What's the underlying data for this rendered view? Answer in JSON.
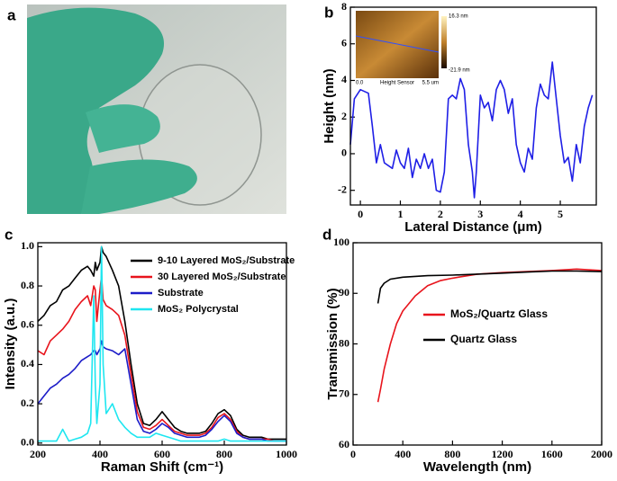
{
  "photo": {
    "label": "a"
  },
  "chart_data": [
    {
      "type": "line",
      "label": "b",
      "xlabel": "Lateral Distance (μm)",
      "ylabel": "Height (nm)",
      "xlim": [
        -0.25,
        5.9
      ],
      "ylim": [
        -2.8,
        8
      ],
      "xticks": [
        0,
        1,
        2,
        3,
        4,
        5
      ],
      "yticks": [
        -2,
        0,
        2,
        4,
        6,
        8
      ],
      "inset": {
        "scale_max": "16.3 nm",
        "scale_min": "-21.9 nm",
        "x_start": "0.0",
        "caption": "Height Sensor",
        "x_end": "5.5 um"
      },
      "series": [
        {
          "color": "#1f1fe6",
          "x": [
            -0.25,
            -0.15,
            0,
            0.2,
            0.3,
            0.4,
            0.5,
            0.6,
            0.8,
            0.9,
            1.0,
            1.1,
            1.2,
            1.3,
            1.4,
            1.5,
            1.6,
            1.7,
            1.8,
            1.9,
            2.0,
            2.1,
            2.2,
            2.3,
            2.4,
            2.5,
            2.6,
            2.7,
            2.8,
            2.85,
            2.9,
            3.0,
            3.1,
            3.2,
            3.3,
            3.4,
            3.5,
            3.6,
            3.7,
            3.8,
            3.9,
            4.0,
            4.1,
            4.2,
            4.3,
            4.4,
            4.5,
            4.6,
            4.7,
            4.8,
            4.9,
            5.0,
            5.1,
            5.2,
            5.3,
            5.4,
            5.5,
            5.6,
            5.7,
            5.8
          ],
          "values": [
            0.5,
            3.0,
            3.5,
            3.3,
            1.5,
            -0.5,
            0.5,
            -0.5,
            -0.8,
            0.2,
            -0.5,
            -0.8,
            0.3,
            -1.3,
            -0.3,
            -0.8,
            0,
            -0.8,
            -0.3,
            -2.0,
            -2.1,
            -1.0,
            3.0,
            3.2,
            3.0,
            4.1,
            3.5,
            0.5,
            -1.0,
            -2.4,
            -1.0,
            3.2,
            2.5,
            2.8,
            1.8,
            3.5,
            4.0,
            3.5,
            2.2,
            3.0,
            0.5,
            -0.5,
            -1.0,
            0.3,
            -0.3,
            2.5,
            3.8,
            3.2,
            3.0,
            5.0,
            3.0,
            1.0,
            -0.5,
            -0.2,
            -1.5,
            0.5,
            -0.5,
            1.5,
            2.5,
            3.2
          ]
        }
      ]
    },
    {
      "type": "line",
      "label": "c",
      "xlabel": "Raman Shift (cm⁻¹)",
      "ylabel": "Intensity (a.u.)",
      "xlim": [
        200,
        1000
      ],
      "ylim": [
        -0.01,
        1.02
      ],
      "xticks": [
        200,
        400,
        600,
        800,
        1000
      ],
      "yticks": [
        {
          "value": 0,
          "label": "0.0"
        },
        0.2,
        0.4,
        0.6,
        0.8,
        {
          "value": 1,
          "label": "1.0"
        }
      ],
      "legend": "upper right",
      "x": [
        200,
        220,
        240,
        260,
        280,
        300,
        320,
        340,
        360,
        370,
        380,
        385,
        390,
        400,
        405,
        410,
        420,
        440,
        460,
        480,
        500,
        520,
        540,
        560,
        580,
        600,
        620,
        640,
        660,
        680,
        700,
        720,
        740,
        760,
        780,
        800,
        820,
        840,
        860,
        880,
        900,
        920,
        940,
        960,
        980,
        1000
      ],
      "series": [
        {
          "name": "9-10 Layered MoS₂/Substrate",
          "color": "#000000",
          "values": [
            0.62,
            0.65,
            0.7,
            0.72,
            0.78,
            0.8,
            0.84,
            0.88,
            0.9,
            0.88,
            0.85,
            0.92,
            0.88,
            0.92,
            1.0,
            0.97,
            0.95,
            0.88,
            0.8,
            0.62,
            0.4,
            0.2,
            0.1,
            0.09,
            0.12,
            0.16,
            0.12,
            0.08,
            0.06,
            0.05,
            0.05,
            0.05,
            0.06,
            0.1,
            0.15,
            0.17,
            0.14,
            0.07,
            0.04,
            0.03,
            0.03,
            0.03,
            0.02,
            0.02,
            0.02,
            0.02
          ]
        },
        {
          "name": "30 Layered MoS₂/Substrate",
          "color": "#e8141c",
          "values": [
            0.47,
            0.45,
            0.52,
            0.55,
            0.58,
            0.62,
            0.68,
            0.72,
            0.75,
            0.7,
            0.8,
            0.78,
            0.62,
            0.78,
            0.85,
            0.73,
            0.7,
            0.68,
            0.65,
            0.55,
            0.35,
            0.16,
            0.08,
            0.07,
            0.09,
            0.12,
            0.09,
            0.06,
            0.05,
            0.04,
            0.04,
            0.04,
            0.05,
            0.08,
            0.13,
            0.15,
            0.12,
            0.06,
            0.03,
            0.02,
            0.02,
            0.02,
            0.02,
            0.01,
            0.01,
            0.01
          ]
        },
        {
          "name": "Substrate",
          "color": "#1c1cc8",
          "values": [
            0.2,
            0.24,
            0.28,
            0.3,
            0.33,
            0.35,
            0.38,
            0.42,
            0.44,
            0.45,
            0.47,
            0.47,
            0.45,
            0.48,
            0.52,
            0.49,
            0.48,
            0.47,
            0.45,
            0.48,
            0.3,
            0.12,
            0.06,
            0.05,
            0.07,
            0.1,
            0.08,
            0.05,
            0.04,
            0.03,
            0.03,
            0.03,
            0.04,
            0.07,
            0.11,
            0.14,
            0.11,
            0.05,
            0.03,
            0.02,
            0.02,
            0.02,
            0.01,
            0.01,
            0.01,
            0.01
          ]
        },
        {
          "name": "MoS₂ Polycrystal",
          "color": "#1ee6f0",
          "values": [
            0.01,
            0.01,
            0.01,
            0.01,
            0.07,
            0.01,
            0.02,
            0.03,
            0.05,
            0.1,
            0.75,
            0.3,
            0.1,
            0.3,
            1.0,
            0.4,
            0.15,
            0.2,
            0.12,
            0.08,
            0.05,
            0.03,
            0.03,
            0.03,
            0.05,
            0.04,
            0.03,
            0.02,
            0.01,
            0.01,
            0.01,
            0.01,
            0.01,
            0.01,
            0.01,
            0.02,
            0.01,
            0.01,
            0.01,
            0.01,
            0.01,
            0.01,
            0.01,
            0.01,
            0.01,
            0.01
          ]
        }
      ]
    },
    {
      "type": "line",
      "label": "d",
      "xlabel": "Wavelength (nm)",
      "ylabel": "Transmission (%)",
      "xlim": [
        0,
        2000
      ],
      "ylim": [
        60,
        100
      ],
      "xticks": [
        0,
        400,
        800,
        1200,
        1600,
        2000
      ],
      "yticks": [
        60,
        70,
        80,
        90,
        100
      ],
      "legend": "center right",
      "series": [
        {
          "name": "MoS₂/Quartz Glass",
          "color": "#e8141c",
          "x": [
            200,
            220,
            250,
            300,
            350,
            400,
            500,
            600,
            700,
            800,
            1000,
            1200,
            1400,
            1600,
            1800,
            2000
          ],
          "values": [
            68.5,
            71,
            75,
            80,
            84,
            86.5,
            89.5,
            91.5,
            92.5,
            93,
            93.8,
            94.1,
            94.3,
            94.5,
            94.8,
            94.5
          ]
        },
        {
          "name": "Quartz Glass",
          "color": "#000000",
          "x": [
            200,
            220,
            250,
            300,
            400,
            600,
            800,
            1000,
            1200,
            1400,
            1600,
            1800,
            2000
          ],
          "values": [
            88,
            91,
            92,
            92.8,
            93.2,
            93.5,
            93.6,
            93.8,
            94,
            94.2,
            94.4,
            94.4,
            94.3
          ]
        }
      ]
    }
  ]
}
